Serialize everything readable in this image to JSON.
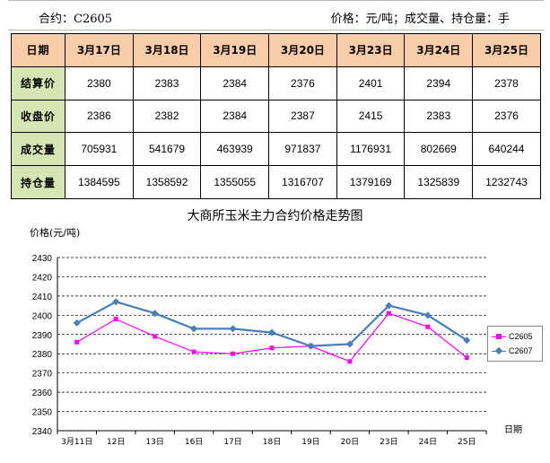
{
  "header": {
    "contract": "合约：C2605",
    "units": "价格：元/吨；成交量、持仓量：手"
  },
  "table": {
    "corner": "日期",
    "dates": [
      "3月17日",
      "3月18日",
      "3月19日",
      "3月20日",
      "3月23日",
      "3月24日",
      "3月25日"
    ],
    "rows": [
      {
        "label": "结算价",
        "values": [
          "2380",
          "2383",
          "2384",
          "2376",
          "2401",
          "2394",
          "2378"
        ]
      },
      {
        "label": "收盘价",
        "values": [
          "2386",
          "2382",
          "2384",
          "2387",
          "2415",
          "2383",
          "2376"
        ]
      },
      {
        "label": "成交量",
        "values": [
          "705931",
          "541679",
          "463939",
          "971837",
          "1176931",
          "802669",
          "640244"
        ]
      },
      {
        "label": "持仓量",
        "values": [
          "1384595",
          "1358592",
          "1355055",
          "1316707",
          "1379169",
          "1325839",
          "1232743"
        ]
      }
    ]
  },
  "chart_data": {
    "type": "line",
    "title": "大商所玉米主力合约价格走势图",
    "ylabel": "价格(元/吨)",
    "xlabel": "日期",
    "categories": [
      "3月11日",
      "12日",
      "13日",
      "16日",
      "17日",
      "18日",
      "19日",
      "20日",
      "23日",
      "24日",
      "25日"
    ],
    "ylim": [
      2340,
      2430
    ],
    "yticks": [
      2340,
      2350,
      2360,
      2370,
      2380,
      2390,
      2400,
      2410,
      2420,
      2430
    ],
    "grid": true,
    "legend_position": "right",
    "series": [
      {
        "name": "C2605",
        "color": "#ff00ff",
        "marker": "square",
        "values": [
          2386,
          2398,
          2389,
          2381,
          2380,
          2383,
          2384,
          2376,
          2401,
          2394,
          2378
        ]
      },
      {
        "name": "C2607",
        "color": "#4a7ebb",
        "marker": "diamond",
        "values": [
          2396,
          2407,
          2401,
          2393,
          2393,
          2391,
          2384,
          2385,
          2405,
          2400,
          2387
        ]
      }
    ]
  }
}
